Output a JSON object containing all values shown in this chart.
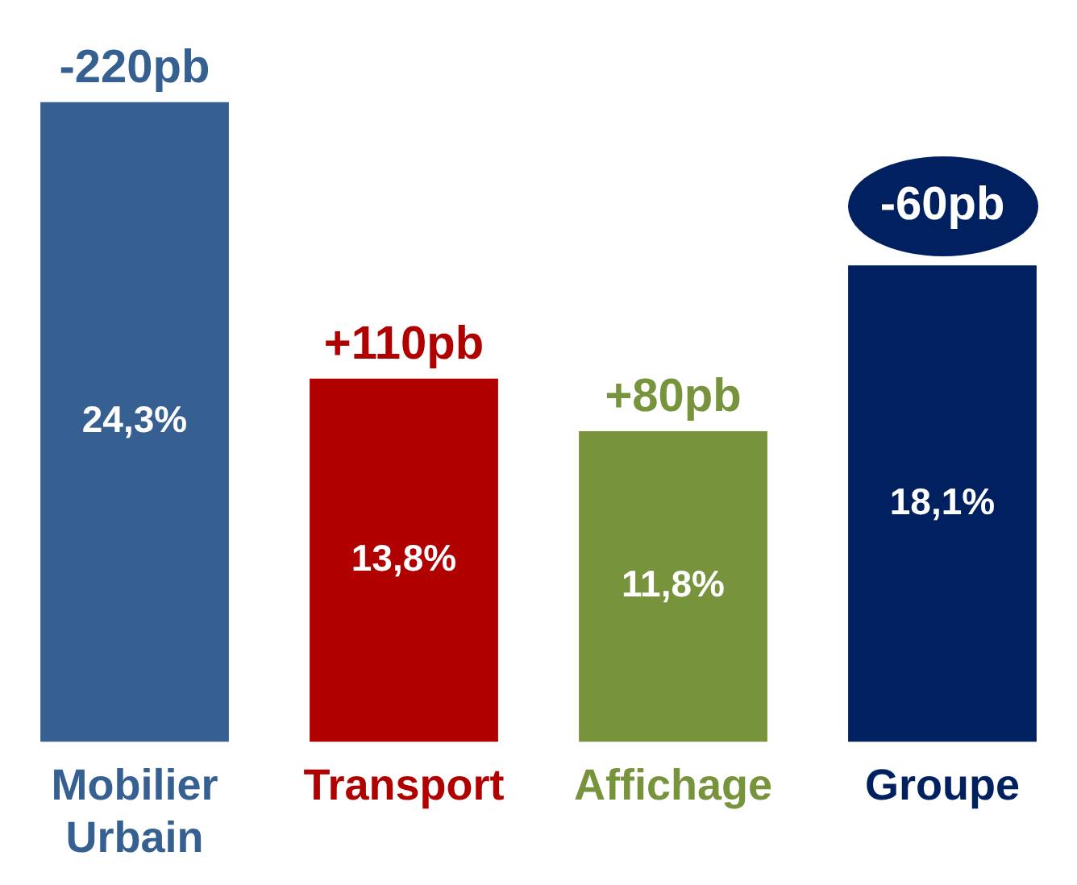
{
  "chart_data": {
    "type": "bar",
    "categories": [
      "Mobilier Urbain",
      "Transport",
      "Affichage",
      "Groupe"
    ],
    "values": [
      24.3,
      13.8,
      11.8,
      18.1
    ],
    "colors": [
      "#376092",
      "#b00000",
      "#77933c",
      "#002060"
    ],
    "value_labels": [
      "24,3%",
      "13,8%",
      "11,8%",
      "18,1%"
    ],
    "annotations": [
      {
        "text": "-220pb",
        "x": "Mobilier Urbain",
        "y": 24.3
      },
      {
        "text": "+110pb",
        "x": "Transport",
        "y": 13.8
      },
      {
        "text": "+80pb",
        "x": "Affichage",
        "y": 11.8
      },
      {
        "text": "-60pb",
        "x": "Groupe",
        "y": 18.1
      }
    ],
    "grid": false,
    "legend": false
  }
}
